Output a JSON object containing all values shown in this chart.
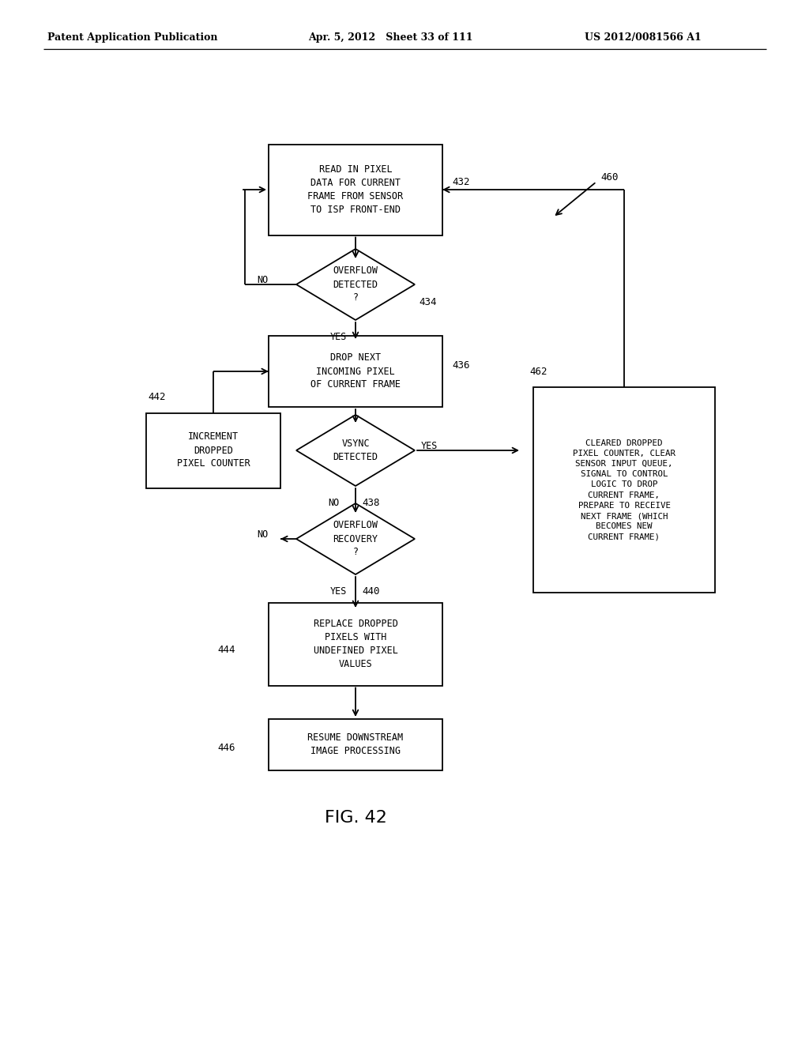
{
  "header_left": "Patent Application Publication",
  "header_mid": "Apr. 5, 2012   Sheet 33 of 111",
  "header_right": "US 2012/0081566 A1",
  "figure_label": "FIG. 42",
  "background_color": "#ffffff",
  "line_color": "#000000",
  "box_432_label": "READ IN PIXEL\nDATA FOR CURRENT\nFRAME FROM SENSOR\nTO ISP FRONT-END",
  "box_432_ref": "432",
  "diamond_434_label": "OVERFLOW\nDETECTED\n?",
  "diamond_434_ref": "434",
  "box_436_label": "DROP NEXT\nINCOMING PIXEL\nOF CURRENT FRAME",
  "box_436_ref": "436",
  "diamond_438_label": "VSYNC\nDETECTED",
  "diamond_438_ref": "438",
  "box_442_label": "INCREMENT\nDROPPED\nPIXEL COUNTER",
  "box_442_ref": "442",
  "diamond_440_label": "OVERFLOW\nRECOVERY\n?",
  "diamond_440_ref": "440",
  "box_444_label": "REPLACE DROPPED\nPIXELS WITH\nUNDEFINED PIXEL\nVALUES",
  "box_444_ref": "444",
  "box_446_label": "RESUME DOWNSTREAM\nIMAGE PROCESSING",
  "box_446_ref": "446",
  "box_462_label": "CLEARED DROPPED\nPIXEL COUNTER, CLEAR\nSENSOR INPUT QUEUE,\nSIGNAL TO CONTROL\nLOGIC TO DROP\nCURRENT FRAME,\nPREPARE TO RECEIVE\nNEXT FRAME (WHICH\nBECOMES NEW\nCURRENT FRAME)",
  "box_462_ref": "462",
  "ref_460": "460"
}
